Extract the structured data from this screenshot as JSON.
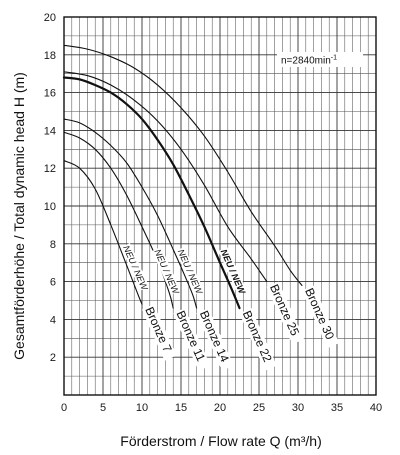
{
  "chart_data": {
    "type": "line",
    "xlabel": "Förderstrom  / Flow rate  Q (m³/h)",
    "ylabel": "Gesamtförderhöhe  / Total dynamic head    H (m)",
    "annotation": "n=2840min",
    "annotation_sup": "-1",
    "xlim": [
      0,
      40
    ],
    "ylim": [
      0,
      20
    ],
    "x_ticks": [
      0,
      5,
      10,
      15,
      20,
      25,
      30,
      35,
      40
    ],
    "y_ticks": [
      2,
      4,
      6,
      8,
      10,
      12,
      14,
      16,
      18,
      20
    ],
    "grid": true,
    "series": [
      {
        "name": "Bronze 7",
        "new_label": "NEU / NEW",
        "points": [
          [
            0,
            12.4
          ],
          [
            2,
            12.0
          ],
          [
            4,
            10.9
          ],
          [
            6,
            9.0
          ],
          [
            8,
            6.9
          ],
          [
            9.5,
            5.3
          ],
          [
            10,
            4.8
          ]
        ]
      },
      {
        "name": "Bronze 11",
        "new_label": "NEU / NEW",
        "points": [
          [
            0,
            13.9
          ],
          [
            2,
            13.6
          ],
          [
            4,
            13.0
          ],
          [
            6,
            12.0
          ],
          [
            8,
            10.6
          ],
          [
            10,
            8.9
          ],
          [
            12,
            7.1
          ],
          [
            13.5,
            5.4
          ],
          [
            14,
            4.6
          ]
        ]
      },
      {
        "name": "Bronze 14",
        "new_label": "NEU / NEW",
        "points": [
          [
            0,
            14.6
          ],
          [
            2,
            14.4
          ],
          [
            4,
            13.9
          ],
          [
            6,
            13.2
          ],
          [
            8,
            12.3
          ],
          [
            10,
            11.0
          ],
          [
            12,
            9.5
          ],
          [
            14,
            7.7
          ],
          [
            15.5,
            6.3
          ],
          [
            16.5,
            5.3
          ],
          [
            17,
            4.6
          ]
        ]
      },
      {
        "name": "Bronze 22",
        "new_label": "NEU / NEW",
        "bold": true,
        "points": [
          [
            0,
            16.8
          ],
          [
            2,
            16.7
          ],
          [
            4,
            16.4
          ],
          [
            6,
            16.0
          ],
          [
            8,
            15.4
          ],
          [
            10,
            14.6
          ],
          [
            12,
            13.5
          ],
          [
            14,
            12.2
          ],
          [
            16,
            10.6
          ],
          [
            18,
            8.9
          ],
          [
            20,
            7.0
          ],
          [
            21.5,
            5.6
          ],
          [
            22.5,
            4.6
          ]
        ]
      },
      {
        "name": "Bronze 25",
        "points": [
          [
            0,
            17.1
          ],
          [
            3,
            16.9
          ],
          [
            6,
            16.4
          ],
          [
            9,
            15.6
          ],
          [
            12,
            14.5
          ],
          [
            15,
            13.0
          ],
          [
            18,
            11.1
          ],
          [
            21,
            8.9
          ],
          [
            24,
            7.2
          ],
          [
            26,
            6.0
          ]
        ]
      },
      {
        "name": "Bronze 30",
        "points": [
          [
            0,
            18.5
          ],
          [
            3,
            18.3
          ],
          [
            6,
            17.9
          ],
          [
            9,
            17.3
          ],
          [
            12,
            16.4
          ],
          [
            15,
            15.2
          ],
          [
            18,
            13.7
          ],
          [
            21,
            11.8
          ],
          [
            24,
            9.7
          ],
          [
            27,
            7.9
          ],
          [
            29,
            6.6
          ],
          [
            30.5,
            5.8
          ]
        ]
      }
    ]
  }
}
